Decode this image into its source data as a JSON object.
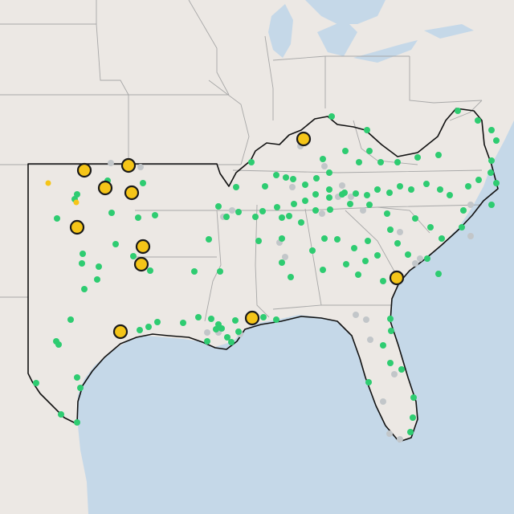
{
  "colors": {
    "land": "#ece8e4",
    "water": "#c5d8e8",
    "active_station": "#2ecc71",
    "inactive_station": "#c2c6c9",
    "alert": "#f5c518",
    "alert_outline": "#1a1a1a",
    "region_outline": "#111111"
  },
  "layers": {
    "basemap": "light-gray-canvas",
    "region": "southern-region-outline",
    "markers": [
      "active-station",
      "inactive-station",
      "alert-site"
    ]
  }
}
